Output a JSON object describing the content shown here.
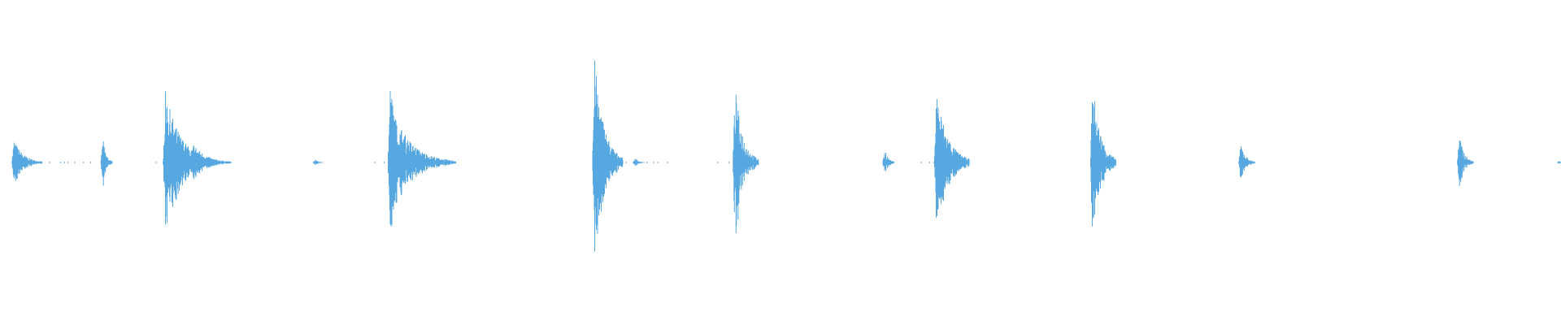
{
  "chart_data": {
    "type": "line",
    "title": "",
    "xlabel": "",
    "ylabel": "",
    "xlim": [
      0,
      1
    ],
    "ylim": [
      -1,
      1
    ],
    "grid": false,
    "legend": "none",
    "color": "#57a8e0",
    "series": [
      {
        "bursts": [
          {
            "t": 0.009,
            "amp": 0.14,
            "decay": 0.006
          },
          {
            "t": 0.066,
            "amp": 0.15,
            "decay": 0.002
          },
          {
            "t": 0.106,
            "amp": 0.44,
            "decay": 0.01
          },
          {
            "t": 0.124,
            "amp": 0.12,
            "decay": 0.008
          },
          {
            "t": 0.202,
            "amp": 0.02,
            "decay": 0.002
          },
          {
            "t": 0.25,
            "amp": 0.49,
            "decay": 0.006
          },
          {
            "t": 0.256,
            "amp": 0.23,
            "decay": 0.012
          },
          {
            "t": 0.381,
            "amp": 0.64,
            "decay": 0.006
          },
          {
            "t": 0.407,
            "amp": 0.03,
            "decay": 0.002
          },
          {
            "t": 0.471,
            "amp": 0.47,
            "decay": 0.005
          },
          {
            "t": 0.567,
            "amp": 0.09,
            "decay": 0.002
          },
          {
            "t": 0.6,
            "amp": 0.46,
            "decay": 0.007
          },
          {
            "t": 0.7,
            "amp": 0.5,
            "decay": 0.005
          },
          {
            "t": 0.795,
            "amp": 0.12,
            "decay": 0.003
          },
          {
            "t": 0.935,
            "amp": 0.17,
            "decay": 0.003
          },
          {
            "t": 0.999,
            "amp": 0.01,
            "decay": 0.001
          }
        ]
      }
    ]
  }
}
